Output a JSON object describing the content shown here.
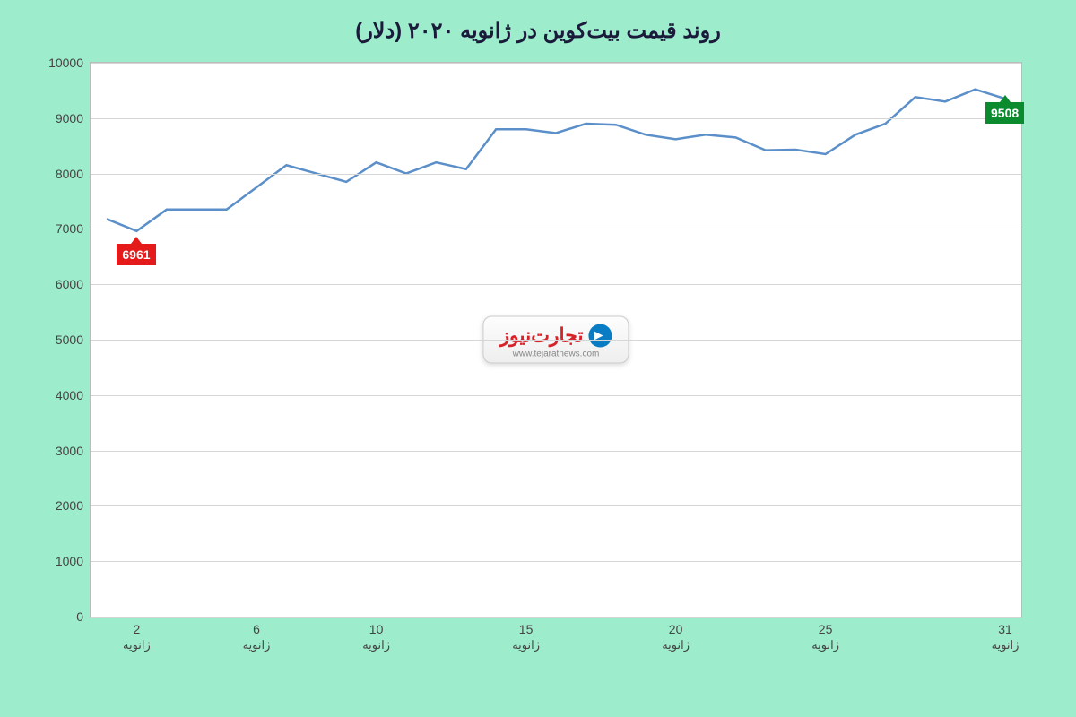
{
  "chart": {
    "type": "line",
    "title": "روند قیمت بیت‌کوین در ژانویه ۲۰۲۰ (دلار)",
    "title_fontsize": 24,
    "title_color": "#1a1a3a",
    "background_color": "#9deccc",
    "plot_background": "#ffffff",
    "plot_border_color": "#bbbbbb",
    "grid_color": "#d6d6d6",
    "line_color": "#5b8fc9",
    "line_width": 2.5,
    "xlim": [
      1,
      31
    ],
    "ylim": [
      0,
      10000
    ],
    "ytick_step": 1000,
    "yticks": [
      0,
      1000,
      2000,
      3000,
      4000,
      5000,
      6000,
      7000,
      8000,
      9000,
      10000
    ],
    "xticks": [
      2,
      6,
      10,
      15,
      20,
      25,
      31
    ],
    "xtick_sub_label": "ژانویه",
    "x_values": [
      1,
      2,
      3,
      4,
      5,
      6,
      7,
      8,
      9,
      10,
      11,
      12,
      13,
      14,
      15,
      16,
      17,
      18,
      19,
      20,
      21,
      22,
      23,
      24,
      25,
      26,
      27,
      28,
      29,
      30,
      31
    ],
    "y_values": [
      7180,
      6961,
      7350,
      7350,
      7350,
      7750,
      8150,
      8000,
      7850,
      8200,
      8000,
      8200,
      8080,
      8800,
      8800,
      8730,
      8900,
      8880,
      8700,
      8620,
      8700,
      8650,
      8420,
      8430,
      8350,
      8700,
      8900,
      9380,
      9300,
      9520,
      9350
    ],
    "callouts": {
      "low": {
        "x": 2,
        "value": 6961,
        "label": "6961",
        "bg": "#e51b1b",
        "text_color": "#ffffff"
      },
      "high": {
        "x": 31,
        "value": 9508,
        "label": "9508",
        "bg": "#0b8a2e",
        "text_color": "#ffffff"
      }
    },
    "axis_label_fontsize": 14,
    "axis_label_color": "#444444"
  },
  "watermark": {
    "brand_text": "تجارت‌نیوز",
    "url": "www.tejaratnews.com",
    "brand_color": "#d8222a",
    "logo_color": "#0a7cc4"
  }
}
